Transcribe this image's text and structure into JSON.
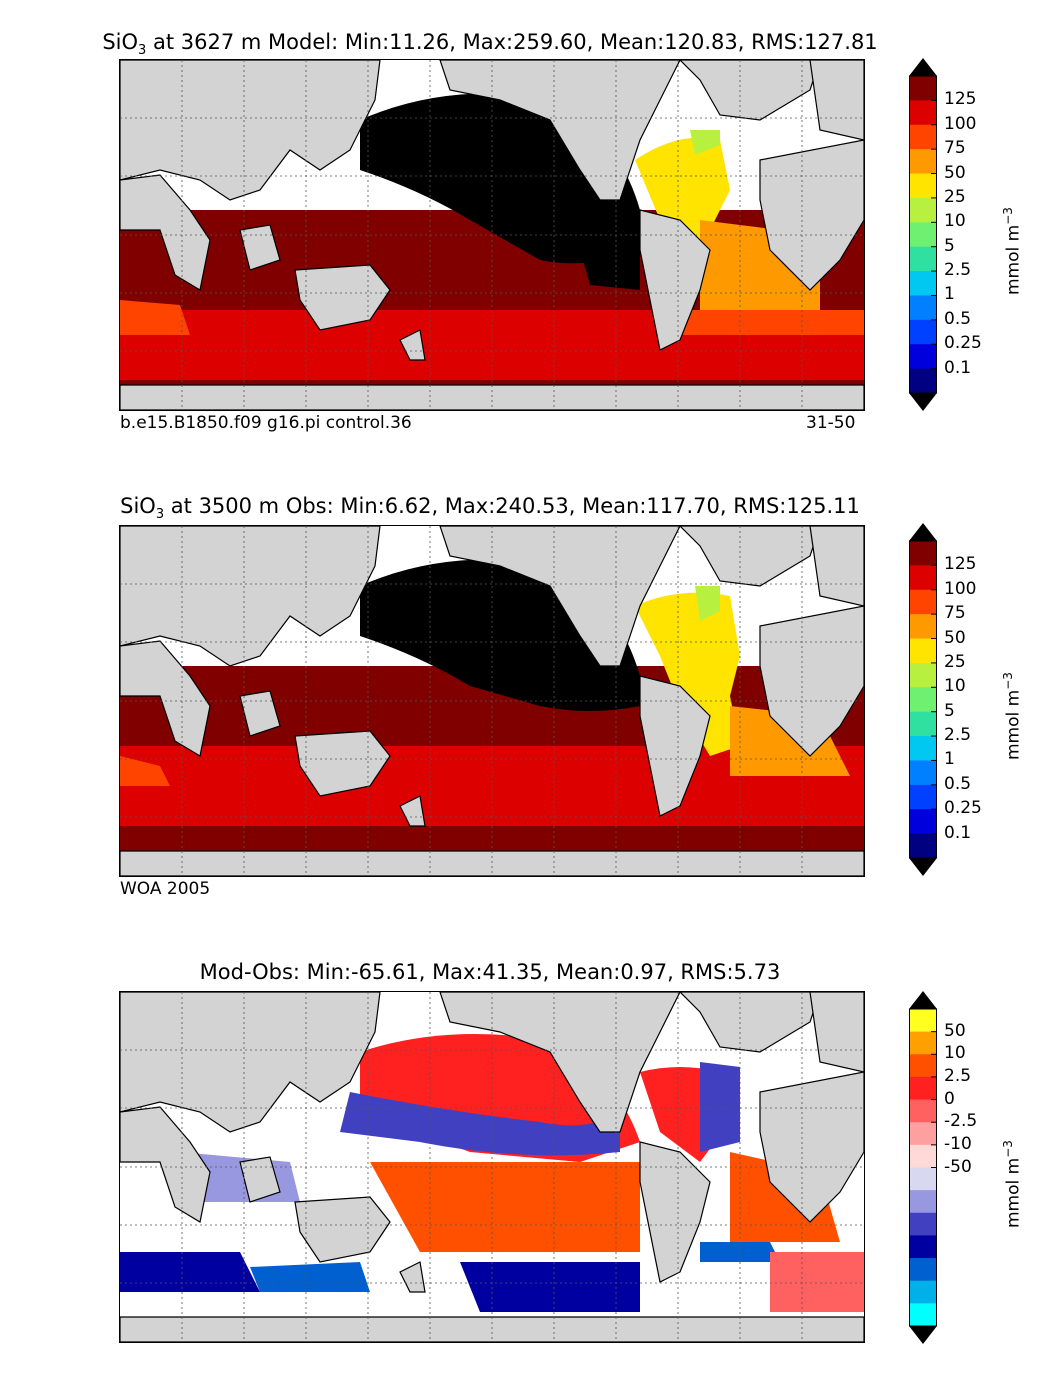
{
  "panels": [
    {
      "id": "model",
      "title_prefix": "SiO",
      "title_sub": "3",
      "title_rest": " at 3627 m Model: Min:11.26, Max:259.60, Mean:120.83, RMS:127.81",
      "caption_left": "b.e15.B1850.f09 g16.pi control.36",
      "caption_right": "31-50",
      "colorbar": {
        "unit": "mmol m",
        "unit_sup": "−3",
        "ticks": [
          "125",
          "100",
          "75",
          "50",
          "25",
          "10",
          "5",
          "2.5",
          "1",
          "0.5",
          "0.25",
          "0.1"
        ],
        "colors": [
          "#800000",
          "#dd0000",
          "#ff4400",
          "#ff9900",
          "#ffe400",
          "#b8f040",
          "#70f070",
          "#30e0a0",
          "#00c8f0",
          "#0080ff",
          "#0040ff",
          "#0000dd",
          "#000080"
        ],
        "top_arrow_color": "#000000",
        "bottom_arrow_color": "#000000"
      }
    },
    {
      "id": "obs",
      "title_prefix": "SiO",
      "title_sub": "3",
      "title_rest": " at 3500 m Obs: Min:6.62, Max:240.53, Mean:117.70, RMS:125.11",
      "caption_left": "WOA 2005",
      "caption_right": "",
      "colorbar": {
        "unit": "mmol m",
        "unit_sup": "−3",
        "ticks": [
          "125",
          "100",
          "75",
          "50",
          "25",
          "10",
          "5",
          "2.5",
          "1",
          "0.5",
          "0.25",
          "0.1"
        ],
        "colors": [
          "#800000",
          "#dd0000",
          "#ff4400",
          "#ff9900",
          "#ffe400",
          "#b8f040",
          "#70f070",
          "#30e0a0",
          "#00c8f0",
          "#0080ff",
          "#0040ff",
          "#0000dd",
          "#000080"
        ],
        "top_arrow_color": "#000000",
        "bottom_arrow_color": "#000000"
      }
    },
    {
      "id": "diff",
      "title_prefix": "Mod-Obs: Min:-65.61, Max:41.35, Mean:0.97, RMS:5.73",
      "title_sub": "",
      "title_rest": "",
      "caption_left": "",
      "caption_right": "",
      "colorbar": {
        "unit": "mmol m",
        "unit_sup": "−3",
        "ticks": [
          "50",
          "10",
          "2.5",
          "0",
          "-2.5",
          "-10",
          "-50"
        ],
        "colors": [
          "#ffff20",
          "#ffa000",
          "#ff5000",
          "#ff2020",
          "#ff6060",
          "#ffa0a0",
          "#ffd8d8",
          "#d8d8f0",
          "#9898e0",
          "#4040c0",
          "#0000a0",
          "#0060d0",
          "#00b0e8",
          "#00ffff"
        ],
        "top_arrow_color": "#000000",
        "bottom_arrow_color": "#000000"
      }
    }
  ],
  "map_colors": {
    "land": "#d3d3d3",
    "nodata": "#ffffff",
    "pacific_black": "#000000"
  }
}
